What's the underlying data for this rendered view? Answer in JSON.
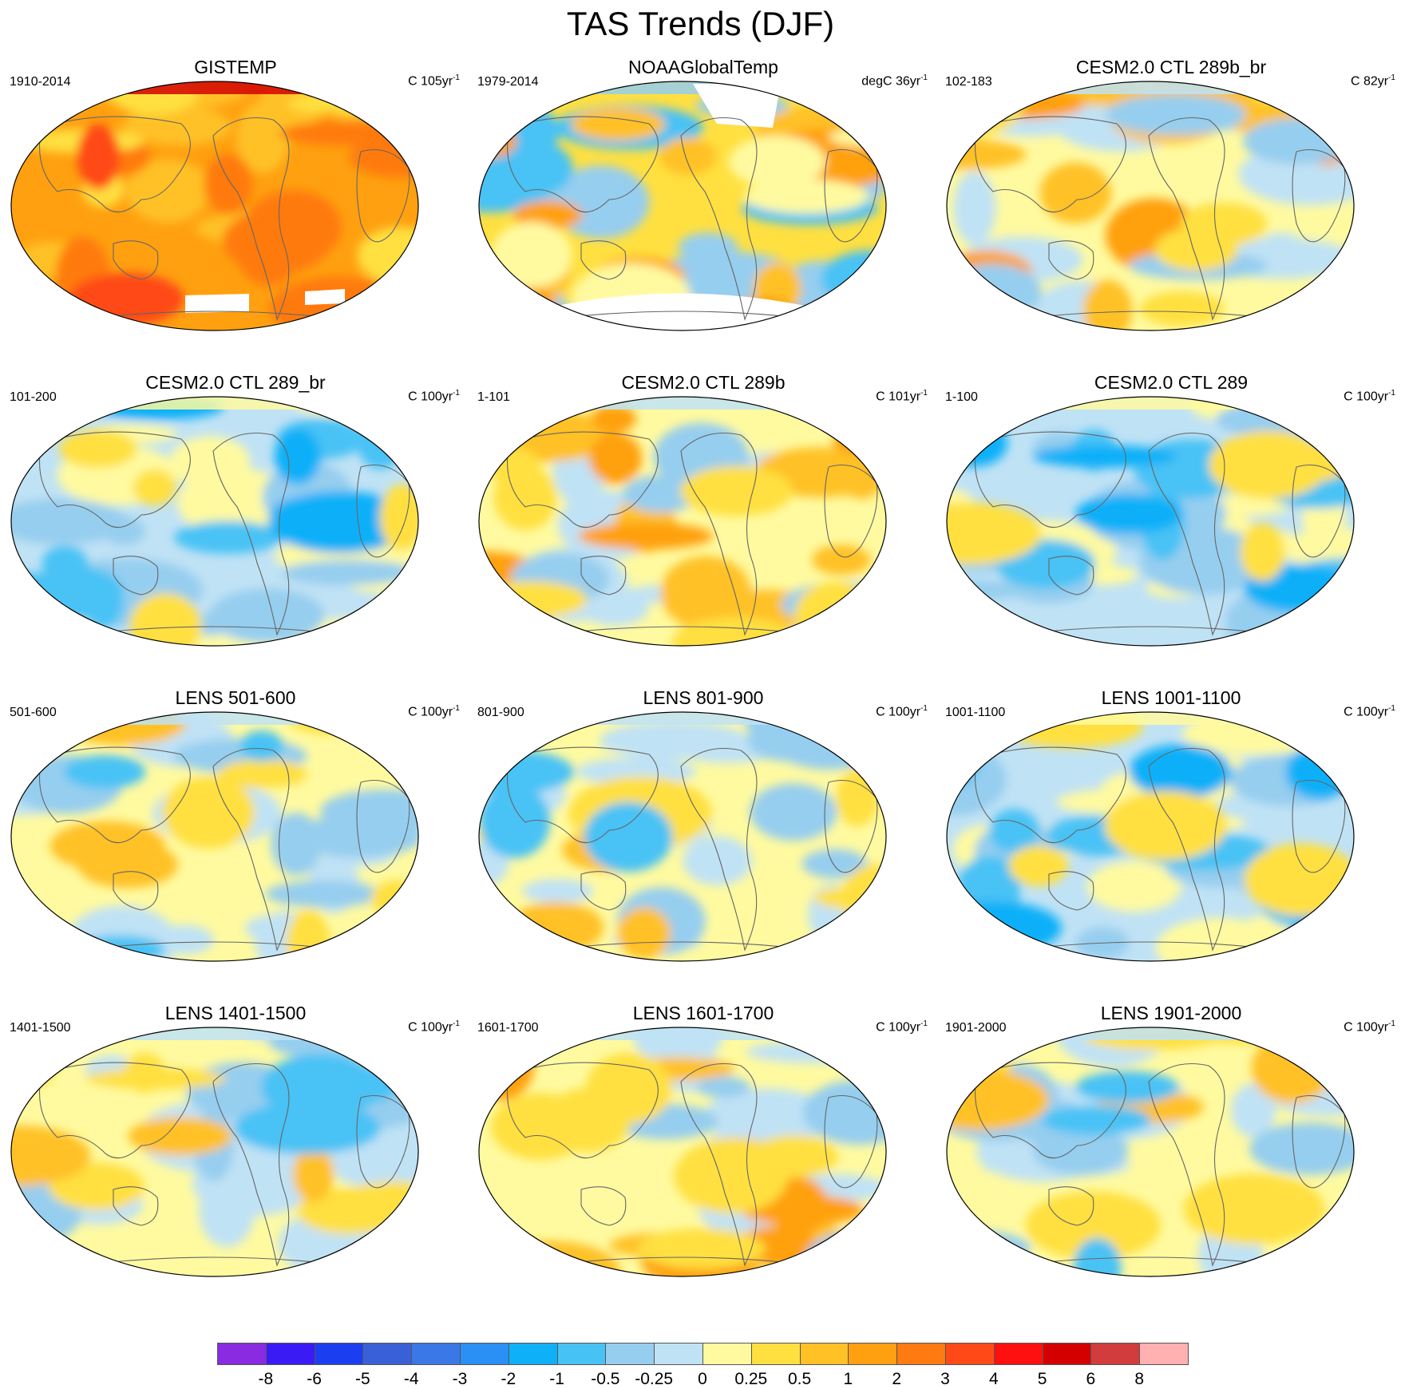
{
  "title": "TAS Trends (DJF)",
  "panels": [
    {
      "title": "GISTEMP",
      "period": "1910-2014",
      "units": "C 105yr",
      "scheme": "warm",
      "mask": true
    },
    {
      "title": "NOAAGlobalTemp",
      "period": "1979-2014",
      "units": "degC 36yr",
      "scheme": "mixed",
      "mask": true
    },
    {
      "title": "CESM2.0 CTL 289b_br",
      "period": "102-183",
      "units": "C 82yr",
      "scheme": "mild-warm",
      "mask": false
    },
    {
      "title": "CESM2.0 CTL 289_br",
      "period": "101-200",
      "units": "C 100yr",
      "scheme": "cool",
      "mask": false
    },
    {
      "title": "CESM2.0 CTL 289b",
      "period": "1-101",
      "units": "C 101yr",
      "scheme": "mild-warm",
      "mask": false
    },
    {
      "title": "CESM2.0 CTL 289",
      "period": "1-100",
      "units": "C 100yr",
      "scheme": "cool",
      "mask": false
    },
    {
      "title": "LENS 501-600",
      "period": "501-600",
      "units": "C 100yr",
      "scheme": "mild",
      "mask": false
    },
    {
      "title": "LENS 801-900",
      "period": "801-900",
      "units": "C 100yr",
      "scheme": "mild",
      "mask": false
    },
    {
      "title": "LENS 1001-1100",
      "period": "1001-1100",
      "units": "C 100yr",
      "scheme": "cool",
      "mask": false
    },
    {
      "title": "LENS 1401-1500",
      "period": "1401-1500",
      "units": "C 100yr",
      "scheme": "mild",
      "mask": false
    },
    {
      "title": "LENS 1601-1700",
      "period": "1601-1700",
      "units": "C 100yr",
      "scheme": "mild-warm",
      "mask": false
    },
    {
      "title": "LENS 1901-2000",
      "period": "1901-2000",
      "units": "C 100yr",
      "scheme": "mild",
      "mask": false
    }
  ],
  "units_exponent": "-1",
  "colorbar": {
    "colors": [
      "#8a2be2",
      "#3a1bf5",
      "#1b3ff0",
      "#3a60d8",
      "#3a78e6",
      "#2a90f5",
      "#10b0f8",
      "#48c2f5",
      "#96ceef",
      "#c0e2f5",
      "#fffaa0",
      "#ffe040",
      "#ffc125",
      "#ffa010",
      "#ff7a10",
      "#ff4a18",
      "#ff1010",
      "#d40000",
      "#d23c3c",
      "#ffb0b0"
    ],
    "labels": [
      "-8",
      "-6",
      "-5",
      "-4",
      "-3",
      "-2",
      "-1",
      "-0.5",
      "-0.25",
      "0",
      "0.25",
      "0.5",
      "1",
      "2",
      "3",
      "4",
      "5",
      "6",
      "8"
    ]
  }
}
